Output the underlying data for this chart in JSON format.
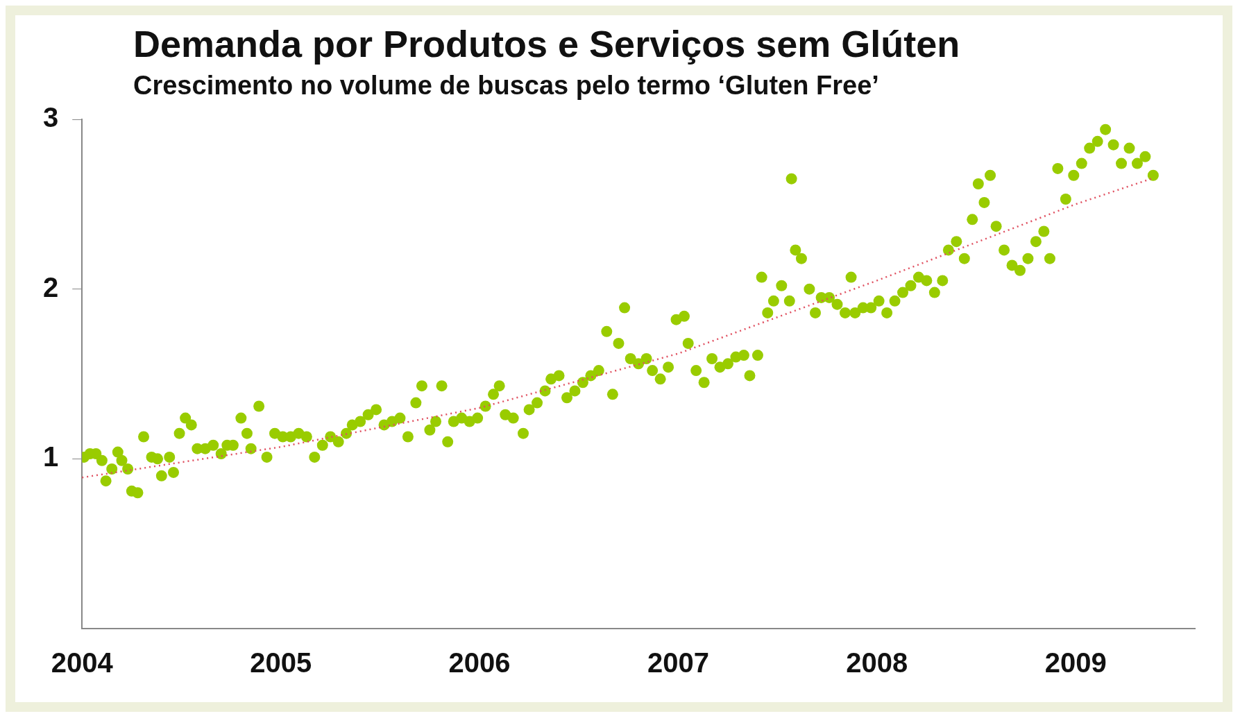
{
  "chart_data": {
    "type": "scatter",
    "title": "Demanda por Produtos e Serviços sem Glúten",
    "subtitle": "Crescimento no volume de buscas pelo termo ‘Gluten Free’",
    "xlim": [
      2004,
      2009.6
    ],
    "xticks": [
      2004,
      2005,
      2006,
      2007,
      2008,
      2009
    ],
    "ylim": [
      0,
      3
    ],
    "yticks": [
      1,
      2,
      3
    ],
    "series": [
      {
        "color": "#99cc00",
        "marker": "circle",
        "x": [
          2004.01,
          2004.04,
          2004.07,
          2004.1,
          2004.12,
          2004.15,
          2004.18,
          2004.2,
          2004.23,
          2004.25,
          2004.28,
          2004.31,
          2004.35,
          2004.38,
          2004.4,
          2004.44,
          2004.46,
          2004.49,
          2004.52,
          2004.55,
          2004.58,
          2004.62,
          2004.66,
          2004.7,
          2004.73,
          2004.76,
          2004.8,
          2004.83,
          2004.85,
          2004.89,
          2004.93,
          2004.97,
          2005.01,
          2005.05,
          2005.09,
          2005.13,
          2005.17,
          2005.21,
          2005.25,
          2005.29,
          2005.33,
          2005.36,
          2005.4,
          2005.44,
          2005.48,
          2005.52,
          2005.56,
          2005.6,
          2005.64,
          2005.68,
          2005.71,
          2005.75,
          2005.78,
          2005.81,
          2005.84,
          2005.87,
          2005.91,
          2005.95,
          2005.99,
          2006.03,
          2006.07,
          2006.1,
          2006.13,
          2006.17,
          2006.22,
          2006.25,
          2006.29,
          2006.33,
          2006.36,
          2006.4,
          2006.44,
          2006.48,
          2006.52,
          2006.56,
          2006.6,
          2006.64,
          2006.67,
          2006.7,
          2006.73,
          2006.76,
          2006.8,
          2006.84,
          2006.87,
          2006.91,
          2006.95,
          2006.99,
          2007.03,
          2007.05,
          2007.09,
          2007.13,
          2007.17,
          2007.21,
          2007.25,
          2007.29,
          2007.33,
          2007.36,
          2007.4,
          2007.42,
          2007.45,
          2007.48,
          2007.52,
          2007.56,
          2007.57,
          2007.59,
          2007.62,
          2007.66,
          2007.69,
          2007.72,
          2007.76,
          2007.8,
          2007.84,
          2007.87,
          2007.89,
          2007.93,
          2007.97,
          2008.01,
          2008.05,
          2008.09,
          2008.13,
          2008.17,
          2008.21,
          2008.25,
          2008.29,
          2008.33,
          2008.36,
          2008.4,
          2008.44,
          2008.48,
          2008.51,
          2008.54,
          2008.57,
          2008.6,
          2008.64,
          2008.68,
          2008.72,
          2008.76,
          2008.8,
          2008.84,
          2008.87,
          2008.91,
          2008.95,
          2008.99,
          2009.03,
          2009.07,
          2009.11,
          2009.15,
          2009.19,
          2009.23,
          2009.27,
          2009.31,
          2009.35,
          2009.39
        ],
        "values": [
          1.01,
          1.03,
          1.03,
          0.99,
          0.87,
          0.94,
          1.04,
          0.99,
          0.94,
          0.81,
          0.8,
          1.13,
          1.01,
          1.0,
          0.9,
          1.01,
          0.92,
          1.15,
          1.24,
          1.2,
          1.06,
          1.06,
          1.08,
          1.03,
          1.08,
          1.08,
          1.24,
          1.15,
          1.06,
          1.31,
          1.01,
          1.15,
          1.13,
          1.13,
          1.15,
          1.13,
          1.01,
          1.08,
          1.13,
          1.1,
          1.15,
          1.2,
          1.22,
          1.26,
          1.29,
          1.2,
          1.22,
          1.24,
          1.13,
          1.33,
          1.43,
          1.17,
          1.22,
          1.43,
          1.1,
          1.22,
          1.24,
          1.22,
          1.24,
          1.31,
          1.38,
          1.43,
          1.26,
          1.24,
          1.15,
          1.29,
          1.33,
          1.4,
          1.47,
          1.49,
          1.36,
          1.4,
          1.45,
          1.49,
          1.52,
          1.75,
          1.38,
          1.68,
          1.89,
          1.59,
          1.56,
          1.59,
          1.52,
          1.47,
          1.54,
          1.82,
          1.84,
          1.68,
          1.52,
          1.45,
          1.59,
          1.54,
          1.56,
          1.6,
          1.61,
          1.49,
          1.61,
          2.07,
          1.86,
          1.93,
          2.02,
          1.93,
          2.65,
          2.23,
          2.18,
          2.0,
          1.86,
          1.95,
          1.95,
          1.91,
          1.86,
          2.07,
          1.86,
          1.89,
          1.89,
          1.93,
          1.86,
          1.93,
          1.98,
          2.02,
          2.07,
          2.05,
          1.98,
          2.05,
          2.23,
          2.28,
          2.18,
          2.41,
          2.62,
          2.51,
          2.67,
          2.37,
          2.23,
          2.14,
          2.11,
          2.18,
          2.28,
          2.34,
          2.18,
          2.71,
          2.53,
          2.67,
          2.74,
          2.83,
          2.87,
          2.94,
          2.85,
          2.74,
          2.83,
          2.74,
          2.78,
          2.67
        ]
      },
      {
        "type": "line",
        "color": "#e05060",
        "marker": "none",
        "line_style": "dotted",
        "x": [
          2004,
          2005,
          2006,
          2007,
          2008,
          2009,
          2009.38
        ],
        "values": [
          0.89,
          1.07,
          1.3,
          1.62,
          2.05,
          2.5,
          2.65
        ]
      }
    ]
  }
}
